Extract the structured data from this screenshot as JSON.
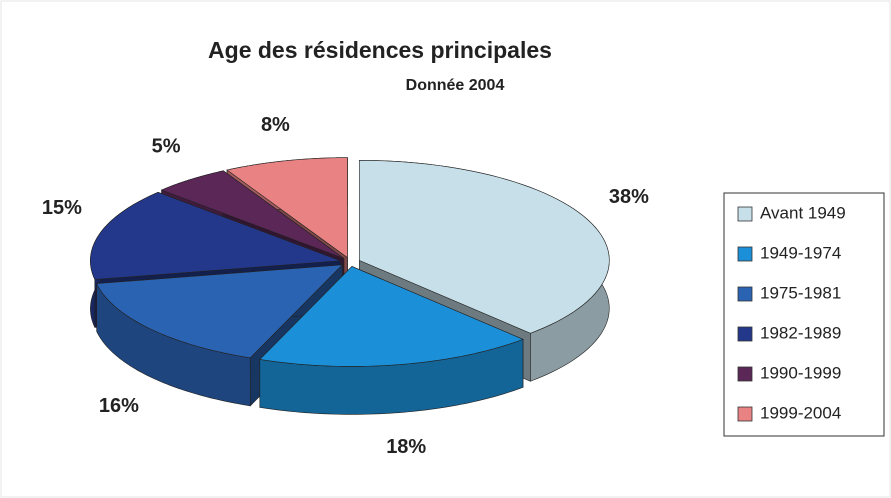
{
  "chart_data": {
    "type": "pie3d",
    "title": "Age des résidences principales",
    "subtitle": "Donnée 2004",
    "categories": [
      "Avant 1949",
      "1949-1974",
      "1975-1981",
      "1982-1989",
      "1990-1999",
      "1999-2004"
    ],
    "values": [
      38,
      18,
      16,
      15,
      5,
      8
    ],
    "value_labels": [
      "38%",
      "18%",
      "16%",
      "15%",
      "5%",
      "8%"
    ],
    "colors": [
      "#c6dfe8",
      "#1b8fd8",
      "#2b63b3",
      "#23388a",
      "#5b2757",
      "#e98383"
    ],
    "legend": "right"
  }
}
